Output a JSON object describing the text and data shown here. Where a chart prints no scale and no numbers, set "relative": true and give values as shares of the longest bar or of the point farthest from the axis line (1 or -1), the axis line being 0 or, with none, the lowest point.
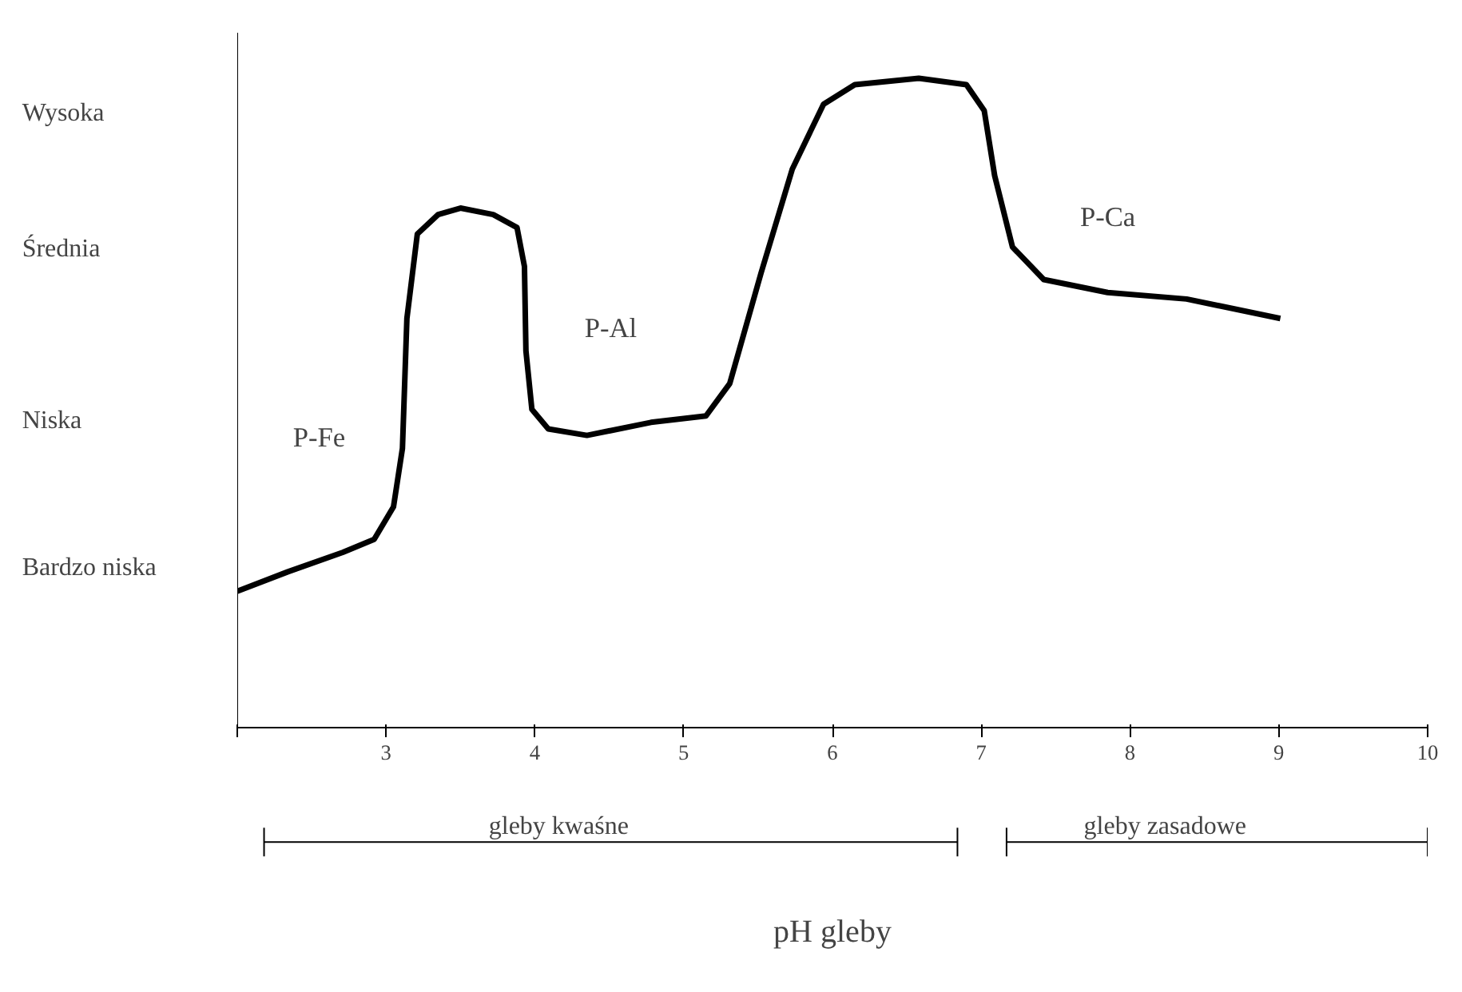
{
  "chart_data": {
    "type": "line",
    "relative": true,
    "x": [
      2.0,
      2.34,
      2.71,
      2.92,
      3.05,
      3.11,
      3.14,
      3.21,
      3.35,
      3.5,
      3.72,
      3.88,
      3.93,
      3.94,
      3.98,
      4.09,
      4.35,
      4.78,
      5.15,
      5.31,
      5.52,
      5.73,
      5.94,
      6.15,
      6.58,
      6.9,
      7.02,
      7.09,
      7.21,
      7.42,
      7.85,
      8.38,
      9.01
    ],
    "series": [
      {
        "color": "#000000",
        "values": [
          0.21,
          0.24,
          0.27,
          0.29,
          0.34,
          0.43,
          0.63,
          0.76,
          0.79,
          0.8,
          0.79,
          0.77,
          0.71,
          0.58,
          0.49,
          0.46,
          0.45,
          0.47,
          0.48,
          0.53,
          0.7,
          0.86,
          0.96,
          0.99,
          1.0,
          0.99,
          0.95,
          0.85,
          0.74,
          0.69,
          0.67,
          0.66,
          0.63
        ]
      }
    ],
    "xlim": [
      2,
      10
    ],
    "xticks": [
      {
        "value": 2,
        "label": null
      },
      3,
      4,
      5,
      6,
      7,
      8,
      9,
      10
    ],
    "annotations": [
      "Wysoka",
      "Średnia",
      "Niska",
      "Bardzo niska",
      "P-Fe",
      "P-Al",
      "P-Ca",
      "pH gleby",
      "gleby kwaśne",
      "gleby zasadowe"
    ],
    "grid": false,
    "marker": "none",
    "line_style": "solid"
  }
}
